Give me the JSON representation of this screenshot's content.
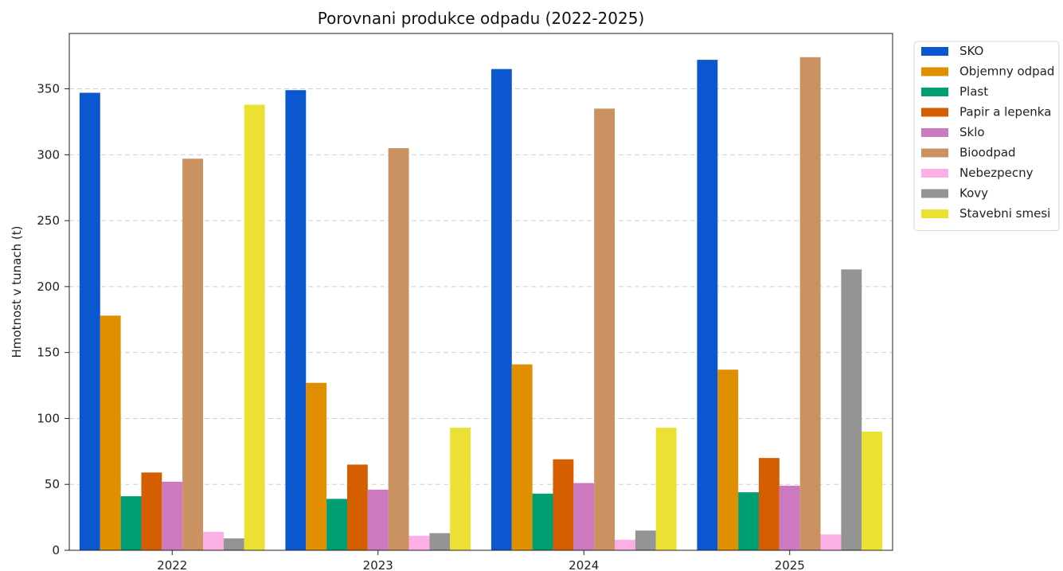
{
  "chart_data": {
    "type": "bar",
    "title": "Porovnani produkce odpadu (2022-2025)",
    "xlabel": "",
    "ylabel": "Hmotnost v tunach (t)",
    "categories": [
      "2022",
      "2023",
      "2024",
      "2025"
    ],
    "ylim": [
      0,
      392
    ],
    "yticks": [
      0,
      50,
      100,
      150,
      200,
      250,
      300,
      350
    ],
    "grid": "y-dashed",
    "legend_position": "outside-right-top",
    "series": [
      {
        "name": "SKO",
        "color": "#0b57d0",
        "values": [
          347,
          349,
          365,
          372
        ]
      },
      {
        "name": "Objemny odpad",
        "color": "#e08f00",
        "values": [
          178,
          127,
          141,
          137
        ]
      },
      {
        "name": "Plast",
        "color": "#009e73",
        "values": [
          41,
          39,
          43,
          44
        ]
      },
      {
        "name": "Papir a lepenka",
        "color": "#d55e00",
        "values": [
          59,
          65,
          69,
          70
        ]
      },
      {
        "name": "Sklo",
        "color": "#cc79c0",
        "values": [
          52,
          46,
          51,
          49
        ]
      },
      {
        "name": "Bioodpad",
        "color": "#ca9161",
        "values": [
          297,
          305,
          335,
          374
        ]
      },
      {
        "name": "Nebezpecny",
        "color": "#fbafe4",
        "values": [
          14,
          11,
          8,
          12
        ]
      },
      {
        "name": "Kovy",
        "color": "#949494",
        "values": [
          9,
          13,
          15,
          213
        ]
      },
      {
        "name": "Stavebni smesi",
        "color": "#ece133",
        "values": [
          338,
          93,
          93,
          90
        ]
      }
    ]
  }
}
